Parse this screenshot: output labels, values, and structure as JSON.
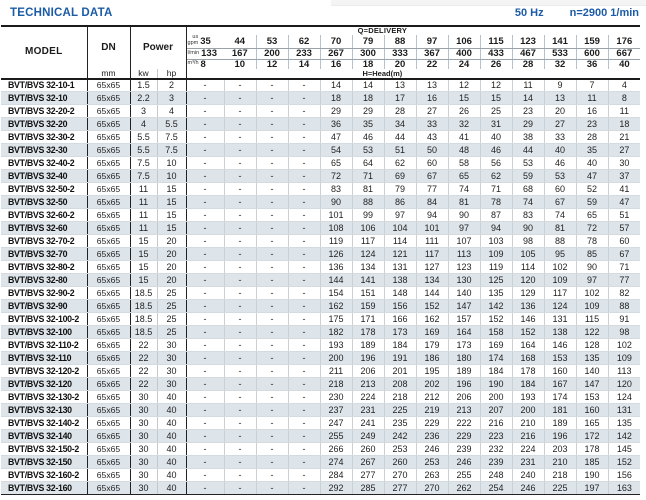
{
  "title": "TECHNICAL DATA",
  "frequency": "50 Hz",
  "speed": "n=2900 1/min",
  "accent_color": "#1b5ba7",
  "row_shade_color": "#dde4ea",
  "table": {
    "header": {
      "model_label": "MODEL",
      "dn_label": "DN",
      "dn_unit": "mm",
      "power_label": "Power",
      "kw_label": "kw",
      "hp_label": "hp",
      "delivery_label": "Q=DELIVERY",
      "head_label": "H=Head(m)",
      "unit_us": "us",
      "unit_gpm": "gpm",
      "unit_lmin": "l/min",
      "unit_m3h": "m³/h"
    },
    "delivery": {
      "us_gpm": [
        "35",
        "44",
        "53",
        "62",
        "70",
        "79",
        "88",
        "97",
        "106",
        "115",
        "123",
        "141",
        "159",
        "176"
      ],
      "l_min": [
        "133",
        "167",
        "200",
        "233",
        "267",
        "300",
        "333",
        "367",
        "400",
        "433",
        "467",
        "533",
        "600",
        "667"
      ],
      "m3_h": [
        "8",
        "10",
        "12",
        "14",
        "16",
        "18",
        "20",
        "22",
        "24",
        "26",
        "28",
        "32",
        "36",
        "40"
      ]
    },
    "rows": [
      {
        "model": "BVT/BVS 32-10-1",
        "dn": "65x65",
        "kw": "1.5",
        "hp": "2",
        "values": [
          "-",
          "-",
          "-",
          "-",
          "14",
          "14",
          "13",
          "13",
          "12",
          "12",
          "11",
          "9",
          "7",
          "4"
        ]
      },
      {
        "model": "BVT/BVS 32-10",
        "dn": "65x65",
        "kw": "2.2",
        "hp": "3",
        "values": [
          "-",
          "-",
          "-",
          "-",
          "18",
          "18",
          "17",
          "16",
          "15",
          "15",
          "14",
          "13",
          "11",
          "8"
        ]
      },
      {
        "model": "BVT/BVS 32-20-2",
        "dn": "65x65",
        "kw": "3",
        "hp": "4",
        "values": [
          "-",
          "-",
          "-",
          "-",
          "29",
          "29",
          "28",
          "27",
          "26",
          "25",
          "23",
          "20",
          "16",
          "11"
        ]
      },
      {
        "model": "BVT/BVS 32-20",
        "dn": "65x65",
        "kw": "4",
        "hp": "5.5",
        "values": [
          "-",
          "-",
          "-",
          "-",
          "36",
          "35",
          "34",
          "33",
          "32",
          "31",
          "29",
          "27",
          "23",
          "18"
        ]
      },
      {
        "model": "BVT/BVS 32-30-2",
        "dn": "65x65",
        "kw": "5.5",
        "hp": "7.5",
        "values": [
          "-",
          "-",
          "-",
          "-",
          "47",
          "46",
          "44",
          "43",
          "41",
          "40",
          "38",
          "33",
          "28",
          "21"
        ]
      },
      {
        "model": "BVT/BVS 32-30",
        "dn": "65x65",
        "kw": "5.5",
        "hp": "7.5",
        "values": [
          "-",
          "-",
          "-",
          "-",
          "54",
          "53",
          "51",
          "50",
          "48",
          "46",
          "44",
          "40",
          "35",
          "27"
        ]
      },
      {
        "model": "BVT/BVS 32-40-2",
        "dn": "65x65",
        "kw": "7.5",
        "hp": "10",
        "values": [
          "-",
          "-",
          "-",
          "-",
          "65",
          "64",
          "62",
          "60",
          "58",
          "56",
          "53",
          "46",
          "40",
          "30"
        ]
      },
      {
        "model": "BVT/BVS 32-40",
        "dn": "65x65",
        "kw": "7.5",
        "hp": "10",
        "values": [
          "-",
          "-",
          "-",
          "-",
          "72",
          "71",
          "69",
          "67",
          "65",
          "62",
          "59",
          "53",
          "47",
          "37"
        ]
      },
      {
        "model": "BVT/BVS 32-50-2",
        "dn": "65x65",
        "kw": "11",
        "hp": "15",
        "values": [
          "-",
          "-",
          "-",
          "-",
          "83",
          "81",
          "79",
          "77",
          "74",
          "71",
          "68",
          "60",
          "52",
          "41"
        ]
      },
      {
        "model": "BVT/BVS 32-50",
        "dn": "65x65",
        "kw": "11",
        "hp": "15",
        "values": [
          "-",
          "-",
          "-",
          "-",
          "90",
          "88",
          "86",
          "84",
          "81",
          "78",
          "74",
          "67",
          "59",
          "47"
        ]
      },
      {
        "model": "BVT/BVS 32-60-2",
        "dn": "65x65",
        "kw": "11",
        "hp": "15",
        "values": [
          "-",
          "-",
          "-",
          "-",
          "101",
          "99",
          "97",
          "94",
          "90",
          "87",
          "83",
          "74",
          "65",
          "51"
        ]
      },
      {
        "model": "BVT/BVS 32-60",
        "dn": "65x65",
        "kw": "11",
        "hp": "15",
        "values": [
          "-",
          "-",
          "-",
          "-",
          "108",
          "106",
          "104",
          "101",
          "97",
          "94",
          "90",
          "81",
          "72",
          "57"
        ]
      },
      {
        "model": "BVT/BVS 32-70-2",
        "dn": "65x65",
        "kw": "15",
        "hp": "20",
        "values": [
          "-",
          "-",
          "-",
          "-",
          "119",
          "117",
          "114",
          "111",
          "107",
          "103",
          "98",
          "88",
          "78",
          "60"
        ]
      },
      {
        "model": "BVT/BVS 32-70",
        "dn": "65x65",
        "kw": "15",
        "hp": "20",
        "values": [
          "-",
          "-",
          "-",
          "-",
          "126",
          "124",
          "121",
          "117",
          "113",
          "109",
          "105",
          "95",
          "85",
          "67"
        ]
      },
      {
        "model": "BVT/BVS 32-80-2",
        "dn": "65x65",
        "kw": "15",
        "hp": "20",
        "values": [
          "-",
          "-",
          "-",
          "-",
          "136",
          "134",
          "131",
          "127",
          "123",
          "119",
          "114",
          "102",
          "90",
          "71"
        ]
      },
      {
        "model": "BVT/BVS 32-80",
        "dn": "65x65",
        "kw": "15",
        "hp": "20",
        "values": [
          "-",
          "-",
          "-",
          "-",
          "144",
          "141",
          "138",
          "134",
          "130",
          "125",
          "120",
          "109",
          "97",
          "77"
        ]
      },
      {
        "model": "BVT/BVS 32-90-2",
        "dn": "65x65",
        "kw": "18.5",
        "hp": "25",
        "values": [
          "-",
          "-",
          "-",
          "-",
          "154",
          "151",
          "148",
          "144",
          "140",
          "135",
          "129",
          "117",
          "102",
          "82"
        ]
      },
      {
        "model": "BVT/BVS 32-90",
        "dn": "65x65",
        "kw": "18.5",
        "hp": "25",
        "values": [
          "-",
          "-",
          "-",
          "-",
          "162",
          "159",
          "156",
          "152",
          "147",
          "142",
          "136",
          "124",
          "109",
          "88"
        ]
      },
      {
        "model": "BVT/BVS 32-100-2",
        "dn": "65x65",
        "kw": "18.5",
        "hp": "25",
        "values": [
          "-",
          "-",
          "-",
          "-",
          "175",
          "171",
          "166",
          "162",
          "157",
          "152",
          "146",
          "131",
          "115",
          "91"
        ]
      },
      {
        "model": "BVT/BVS 32-100",
        "dn": "65x65",
        "kw": "18.5",
        "hp": "25",
        "values": [
          "-",
          "-",
          "-",
          "-",
          "182",
          "178",
          "173",
          "169",
          "164",
          "158",
          "152",
          "138",
          "122",
          "98"
        ]
      },
      {
        "model": "BVT/BVS 32-110-2",
        "dn": "65x65",
        "kw": "22",
        "hp": "30",
        "values": [
          "-",
          "-",
          "-",
          "-",
          "193",
          "189",
          "184",
          "179",
          "173",
          "169",
          "164",
          "146",
          "128",
          "102"
        ]
      },
      {
        "model": "BVT/BVS 32-110",
        "dn": "65x65",
        "kw": "22",
        "hp": "30",
        "values": [
          "-",
          "-",
          "-",
          "-",
          "200",
          "196",
          "191",
          "186",
          "180",
          "174",
          "168",
          "153",
          "135",
          "109"
        ]
      },
      {
        "model": "BVT/BVS 32-120-2",
        "dn": "65x65",
        "kw": "22",
        "hp": "30",
        "values": [
          "-",
          "-",
          "-",
          "-",
          "211",
          "206",
          "201",
          "195",
          "189",
          "184",
          "178",
          "160",
          "140",
          "113"
        ]
      },
      {
        "model": "BVT/BVS 32-120",
        "dn": "65x65",
        "kw": "22",
        "hp": "30",
        "values": [
          "-",
          "-",
          "-",
          "-",
          "218",
          "213",
          "208",
          "202",
          "196",
          "190",
          "184",
          "167",
          "147",
          "120"
        ]
      },
      {
        "model": "BVT/BVS 32-130-2",
        "dn": "65x65",
        "kw": "30",
        "hp": "40",
        "values": [
          "-",
          "-",
          "-",
          "-",
          "230",
          "224",
          "218",
          "212",
          "206",
          "200",
          "193",
          "174",
          "153",
          "124"
        ]
      },
      {
        "model": "BVT/BVS 32-130",
        "dn": "65x65",
        "kw": "30",
        "hp": "40",
        "values": [
          "-",
          "-",
          "-",
          "-",
          "237",
          "231",
          "225",
          "219",
          "213",
          "207",
          "200",
          "181",
          "160",
          "131"
        ]
      },
      {
        "model": "BVT/BVS 32-140-2",
        "dn": "65x65",
        "kw": "30",
        "hp": "40",
        "values": [
          "-",
          "-",
          "-",
          "-",
          "247",
          "241",
          "235",
          "229",
          "222",
          "216",
          "210",
          "189",
          "165",
          "135"
        ]
      },
      {
        "model": "BVT/BVS 32-140",
        "dn": "65x65",
        "kw": "30",
        "hp": "40",
        "values": [
          "-",
          "-",
          "-",
          "-",
          "255",
          "249",
          "242",
          "236",
          "229",
          "223",
          "216",
          "196",
          "172",
          "142"
        ]
      },
      {
        "model": "BVT/BVS 32-150-2",
        "dn": "65x65",
        "kw": "30",
        "hp": "40",
        "values": [
          "-",
          "-",
          "-",
          "-",
          "266",
          "260",
          "253",
          "246",
          "239",
          "232",
          "224",
          "203",
          "178",
          "145"
        ]
      },
      {
        "model": "BVT/BVS 32-150",
        "dn": "65x65",
        "kw": "30",
        "hp": "40",
        "values": [
          "-",
          "-",
          "-",
          "-",
          "274",
          "267",
          "260",
          "253",
          "246",
          "239",
          "231",
          "210",
          "185",
          "152"
        ]
      },
      {
        "model": "BVT/BVS 32-160-2",
        "dn": "65x65",
        "kw": "30",
        "hp": "40",
        "values": [
          "-",
          "-",
          "-",
          "-",
          "284",
          "277",
          "270",
          "263",
          "255",
          "248",
          "240",
          "218",
          "190",
          "156"
        ]
      },
      {
        "model": "BVT/BVS 32-160",
        "dn": "65x65",
        "kw": "30",
        "hp": "40",
        "values": [
          "-",
          "-",
          "-",
          "-",
          "292",
          "285",
          "277",
          "270",
          "262",
          "254",
          "246",
          "225",
          "197",
          "163"
        ]
      }
    ]
  }
}
